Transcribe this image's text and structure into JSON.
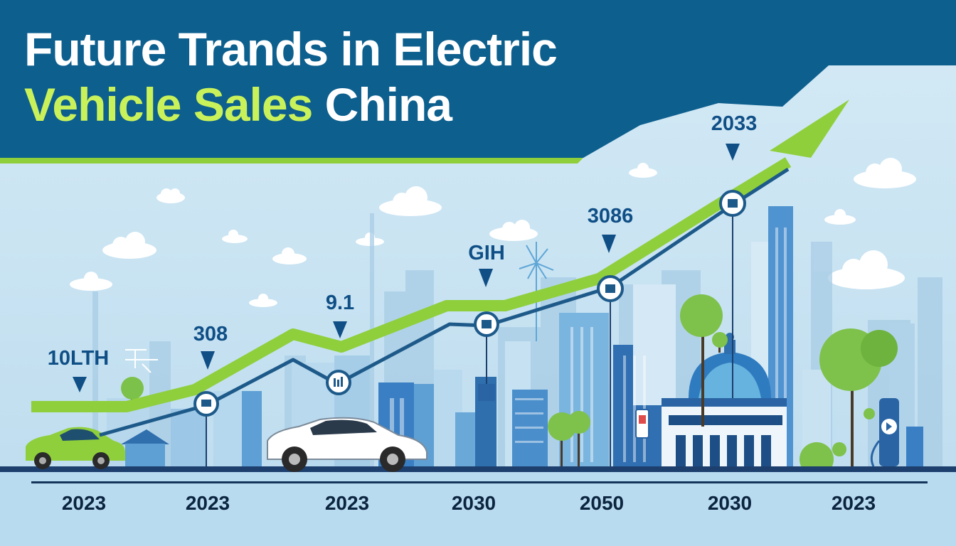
{
  "title": {
    "line1": "Future Trands in Electric",
    "line2_accent": "Vehicle Sales",
    "line2_rest": "China"
  },
  "callouts": [
    {
      "id": "c1",
      "text": "10LTH"
    },
    {
      "id": "c2",
      "text": "308"
    },
    {
      "id": "c3",
      "text": "9.1"
    },
    {
      "id": "c4",
      "text": "GIH"
    },
    {
      "id": "c5",
      "text": "3086"
    },
    {
      "id": "c6",
      "text": "2033"
    }
  ],
  "x_labels": [
    "2023",
    "2023",
    "2023",
    "2030",
    "2050",
    "2030",
    "2023"
  ],
  "colors": {
    "header_blue": "#0d5f8e",
    "accent_green": "#8fcf3c",
    "line_navy": "#1d5a8a",
    "sky": "#cfe5f3",
    "ground": "#b9dbef"
  }
}
